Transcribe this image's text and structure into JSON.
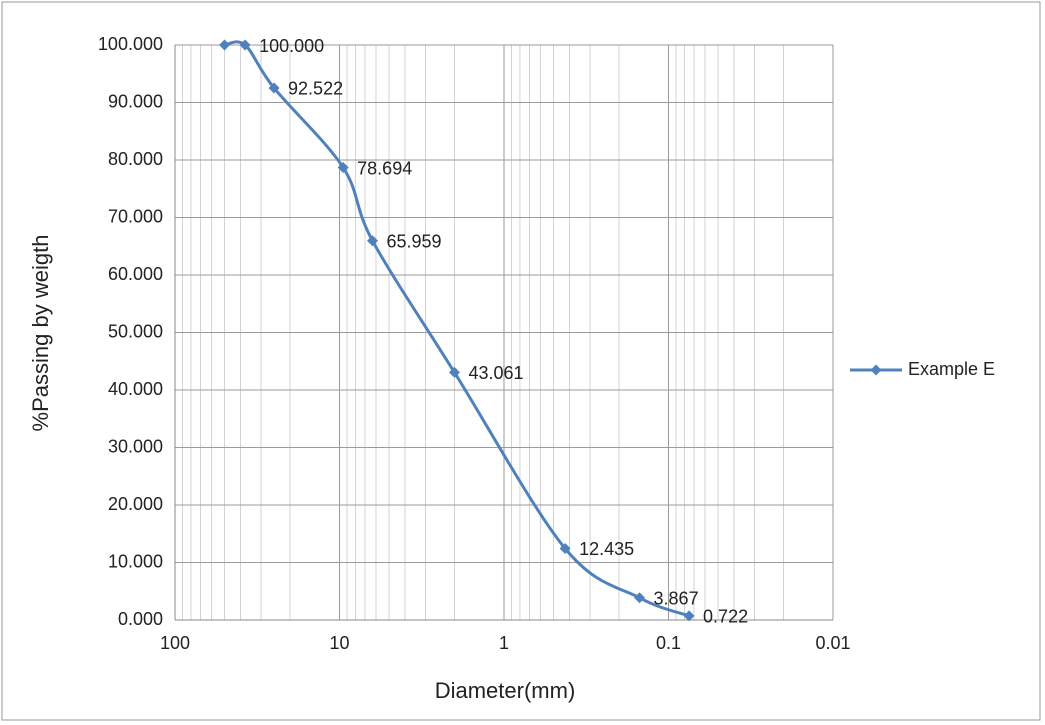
{
  "chart_data": {
    "type": "line",
    "x_label": "Diameter(mm)",
    "y_label": "%Passing by weigth",
    "x": [
      50,
      37.5,
      25,
      9.5,
      6.3,
      2.0,
      0.425,
      0.15,
      0.075
    ],
    "series": [
      {
        "name": "Example E",
        "color": "#4f81bd",
        "values": [
          100,
          100,
          92.522,
          78.694,
          65.959,
          43.061,
          12.435,
          3.867,
          0.722
        ],
        "value_labels": [
          null,
          "100.000",
          "92.522",
          "78.694",
          "65.959",
          "43.061",
          "12.435",
          "3.867",
          "0.722"
        ]
      }
    ],
    "xscale": "log",
    "xlim": [
      100,
      0.01
    ],
    "xticks": [
      100,
      10,
      1,
      0.1,
      0.01
    ],
    "ylim": [
      0,
      100
    ],
    "yticks": [
      {
        "value": 0,
        "label": "0.000"
      },
      {
        "value": 10,
        "label": "10.000"
      },
      {
        "value": 20,
        "label": "20.000"
      },
      {
        "value": 30,
        "label": "30.000"
      },
      {
        "value": 40,
        "label": "40.000"
      },
      {
        "value": 50,
        "label": "50.000"
      },
      {
        "value": 60,
        "label": "60.000"
      },
      {
        "value": 70,
        "label": "70.000"
      },
      {
        "value": 80,
        "label": "80.000"
      },
      {
        "value": 90,
        "label": "90.000"
      },
      {
        "value": 100,
        "label": "100.000"
      }
    ],
    "grid": true,
    "legend": "right"
  }
}
